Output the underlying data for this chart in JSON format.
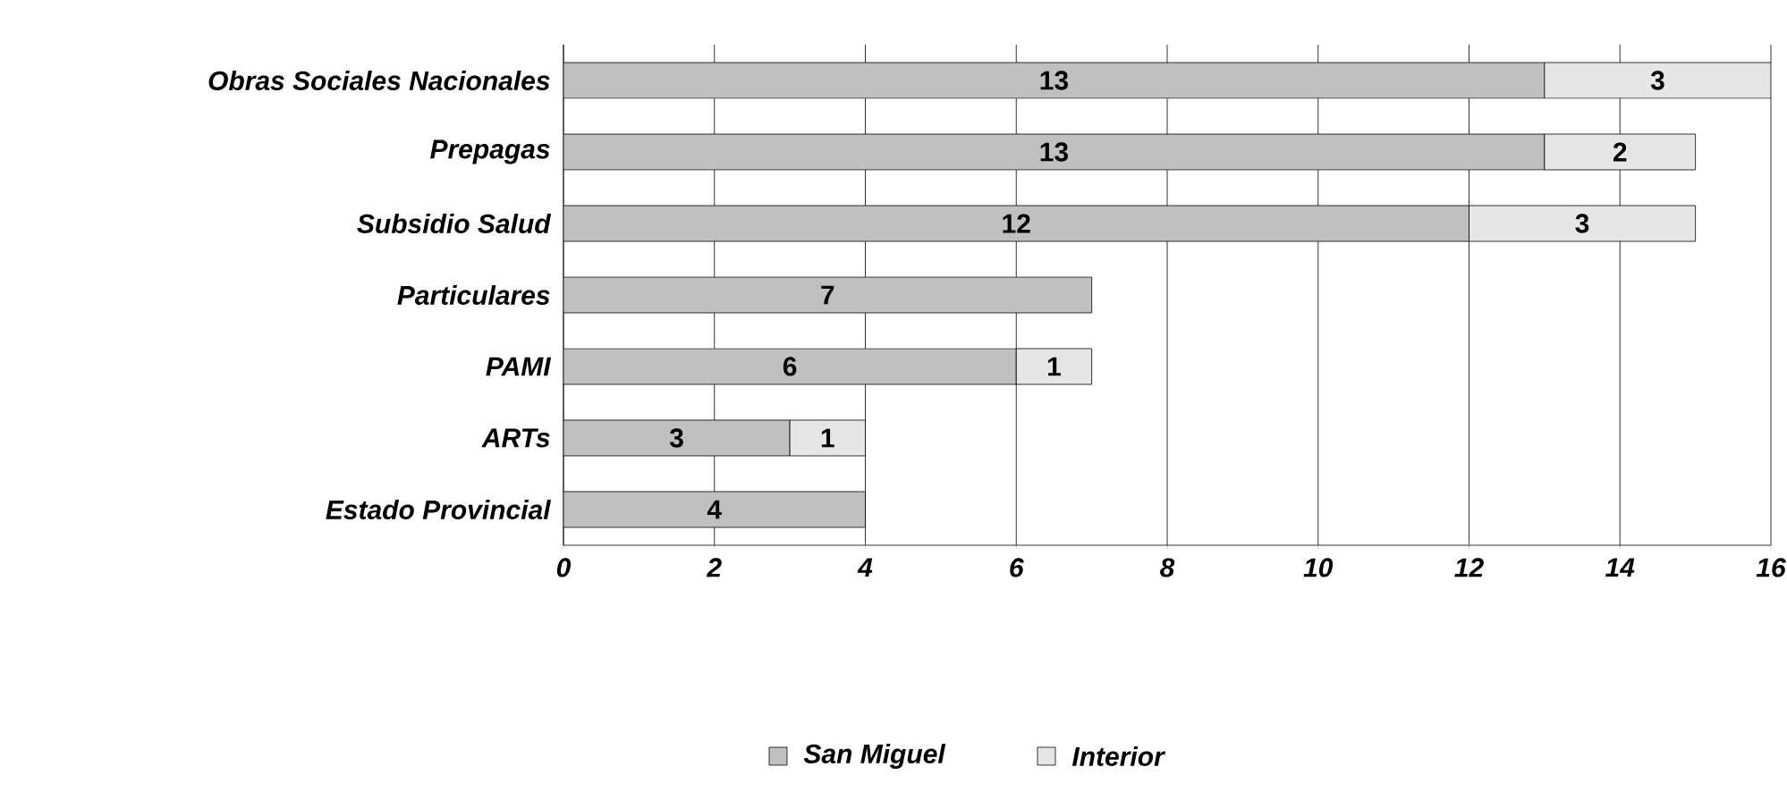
{
  "chart_data": {
    "type": "bar",
    "orientation": "horizontal",
    "stacked": true,
    "categories": [
      "Obras Sociales Nacionales",
      "Prepagas",
      "Subsidio Salud",
      "Particulares",
      "PAMI",
      "ARTs",
      "Estado Provincial"
    ],
    "series": [
      {
        "name": "San Miguel",
        "color": "#c0c0c0",
        "values": [
          13,
          13,
          12,
          7,
          6,
          3,
          4
        ]
      },
      {
        "name": "Interior",
        "color": "#e6e6e6",
        "values": [
          3,
          2,
          3,
          null,
          1,
          1,
          null
        ]
      }
    ],
    "xlim": [
      0,
      16
    ],
    "xticks": [
      0,
      2,
      4,
      6,
      8,
      10,
      12,
      14,
      16
    ],
    "grid": "x",
    "legend": "bottom",
    "data_labels": true
  }
}
